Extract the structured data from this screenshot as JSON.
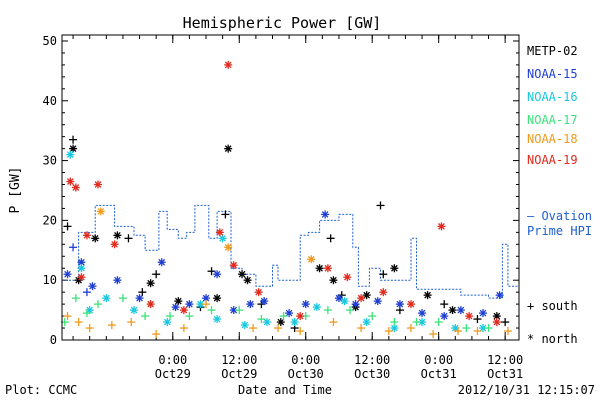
{
  "chart_data": {
    "type": "scatter",
    "title": "Hemispheric Power [GW]",
    "ylabel": "P [GW]",
    "xlabel": "Date and Time",
    "footer_left": "Plot: CCMC",
    "footer_right": "2012/10/31 12:15:07",
    "ylim": [
      0,
      51
    ],
    "yticks": [
      0,
      10,
      20,
      30,
      40,
      50
    ],
    "xlim": [
      "2012-10-28 04:00",
      "2012-10-31 14:30"
    ],
    "x_ticks": [
      {
        "x": "2012-10-29 00:00",
        "time": "0:00",
        "date": "Oct29"
      },
      {
        "x": "2012-10-29 12:00",
        "time": "12:00",
        "date": "Oct29"
      },
      {
        "x": "2012-10-30 00:00",
        "time": "0:00",
        "date": "Oct30"
      },
      {
        "x": "2012-10-30 12:00",
        "time": "12:00",
        "date": "Oct30"
      },
      {
        "x": "2012-10-31 00:00",
        "time": "0:00",
        "date": "Oct31"
      },
      {
        "x": "2012-10-31 12:00",
        "time": "12:00",
        "date": "Oct31"
      }
    ],
    "legend": {
      "placement": "right",
      "entries": [
        {
          "name": "METP-02",
          "color": "#000000"
        },
        {
          "name": "NOAA-15",
          "color": "#1f3fd0"
        },
        {
          "name": "NOAA-16",
          "color": "#19c8e0"
        },
        {
          "name": "NOAA-17",
          "color": "#3ce27a"
        },
        {
          "name": "NOAA-18",
          "color": "#ef9a1e"
        },
        {
          "name": "NOAA-19",
          "color": "#e02a1e"
        }
      ],
      "ovation_label_1": "— Ovation",
      "ovation_label_2": "Prime HPI",
      "ovation_color": "#1f5fd0",
      "symbol_south": "+ south",
      "symbol_north": "* north"
    },
    "ovation": [
      [
        "2012-10-28 04:00",
        10
      ],
      [
        "2012-10-28 07:00",
        10
      ],
      [
        "2012-10-28 07:00",
        18
      ],
      [
        "2012-10-28 10:00",
        18
      ],
      [
        "2012-10-28 10:00",
        22.5
      ],
      [
        "2012-10-28 13:30",
        22.5
      ],
      [
        "2012-10-28 13:30",
        19
      ],
      [
        "2012-10-28 17:00",
        19
      ],
      [
        "2012-10-28 17:00",
        17.5
      ],
      [
        "2012-10-28 19:00",
        17.5
      ],
      [
        "2012-10-28 19:00",
        15
      ],
      [
        "2012-10-28 21:30",
        15
      ],
      [
        "2012-10-28 21:30",
        21.5
      ],
      [
        "2012-10-28 23:00",
        21.5
      ],
      [
        "2012-10-28 23:00",
        18.5
      ],
      [
        "2012-10-29 01:00",
        18.5
      ],
      [
        "2012-10-29 01:00",
        17
      ],
      [
        "2012-10-29 02:30",
        17
      ],
      [
        "2012-10-29 02:30",
        18
      ],
      [
        "2012-10-29 04:00",
        18
      ],
      [
        "2012-10-29 04:00",
        22.5
      ],
      [
        "2012-10-29 06:30",
        22.5
      ],
      [
        "2012-10-29 06:30",
        17
      ],
      [
        "2012-10-29 08:00",
        17
      ],
      [
        "2012-10-29 08:00",
        21.5
      ],
      [
        "2012-10-29 10:30",
        21.5
      ],
      [
        "2012-10-29 10:30",
        12
      ],
      [
        "2012-10-29 12:30",
        12
      ],
      [
        "2012-10-29 12:30",
        11
      ],
      [
        "2012-10-29 15:00",
        11
      ],
      [
        "2012-10-29 15:00",
        9
      ],
      [
        "2012-10-29 18:00",
        9
      ],
      [
        "2012-10-29 18:00",
        12.5
      ],
      [
        "2012-10-29 19:00",
        12.5
      ],
      [
        "2012-10-29 19:00",
        10
      ],
      [
        "2012-10-29 23:00",
        10
      ],
      [
        "2012-10-29 23:00",
        17.5
      ],
      [
        "2012-10-30 00:30",
        17.5
      ],
      [
        "2012-10-30 00:30",
        18
      ],
      [
        "2012-10-30 02:30",
        18
      ],
      [
        "2012-10-30 02:30",
        20
      ],
      [
        "2012-10-30 06:00",
        20
      ],
      [
        "2012-10-30 06:00",
        21
      ],
      [
        "2012-10-30 08:30",
        21
      ],
      [
        "2012-10-30 08:30",
        15.5
      ],
      [
        "2012-10-30 09:30",
        15.5
      ],
      [
        "2012-10-30 09:30",
        9
      ],
      [
        "2012-10-30 11:30",
        9
      ],
      [
        "2012-10-30 11:30",
        12
      ],
      [
        "2012-10-30 13:30",
        12
      ],
      [
        "2012-10-30 13:30",
        10
      ],
      [
        "2012-10-30 19:00",
        10
      ],
      [
        "2012-10-30 19:00",
        17
      ],
      [
        "2012-10-30 20:00",
        17
      ],
      [
        "2012-10-30 20:00",
        8.5
      ],
      [
        "2012-10-31 04:00",
        8.5
      ],
      [
        "2012-10-31 04:00",
        7.5
      ],
      [
        "2012-10-31 09:00",
        7.5
      ],
      [
        "2012-10-31 09:00",
        7
      ],
      [
        "2012-10-31 11:30",
        7
      ],
      [
        "2012-10-31 11:30",
        16
      ],
      [
        "2012-10-31 12:30",
        16
      ],
      [
        "2012-10-31 12:30",
        9
      ],
      [
        "2012-10-31 14:30",
        9
      ]
    ],
    "series": [
      {
        "name": "METP-02",
        "color": "#000000",
        "points": [
          [
            "2012-10-28 05:00",
            19,
            "s"
          ],
          [
            "2012-10-28 06:00",
            33.5,
            "s"
          ],
          [
            "2012-10-28 06:00",
            32,
            "n"
          ],
          [
            "2012-10-28 07:00",
            10,
            "n"
          ],
          [
            "2012-10-28 10:00",
            17,
            "n"
          ],
          [
            "2012-10-28 14:00",
            17.5,
            "n"
          ],
          [
            "2012-10-28 16:00",
            17,
            "s"
          ],
          [
            "2012-10-28 18:30",
            8,
            "s"
          ],
          [
            "2012-10-28 20:00",
            9.5,
            "n"
          ],
          [
            "2012-10-28 21:00",
            11,
            "s"
          ],
          [
            "2012-10-29 01:00",
            6.5,
            "n"
          ],
          [
            "2012-10-29 05:00",
            5.5,
            "s"
          ],
          [
            "2012-10-29 07:00",
            11.5,
            "s"
          ],
          [
            "2012-10-29 08:00",
            7,
            "n"
          ],
          [
            "2012-10-29 09:30",
            21,
            "s"
          ],
          [
            "2012-10-29 10:00",
            32,
            "n"
          ],
          [
            "2012-10-29 12:30",
            11,
            "n"
          ],
          [
            "2012-10-29 13:30",
            10,
            "n"
          ],
          [
            "2012-10-29 16:00",
            6,
            "s"
          ],
          [
            "2012-10-29 19:30",
            3,
            "n"
          ],
          [
            "2012-10-29 22:00",
            2,
            "s"
          ],
          [
            "2012-10-30 02:30",
            12,
            "n"
          ],
          [
            "2012-10-30 04:30",
            17,
            "s"
          ],
          [
            "2012-10-30 05:00",
            10,
            "n"
          ],
          [
            "2012-10-30 06:30",
            7.5,
            "s"
          ],
          [
            "2012-10-30 09:00",
            5.5,
            "n"
          ],
          [
            "2012-10-30 11:00",
            7.5,
            "n"
          ],
          [
            "2012-10-30 13:30",
            22.5,
            "s"
          ],
          [
            "2012-10-30 14:00",
            11,
            "s"
          ],
          [
            "2012-10-30 16:00",
            12,
            "n"
          ],
          [
            "2012-10-30 17:00",
            5,
            "s"
          ],
          [
            "2012-10-30 22:00",
            7.5,
            "n"
          ],
          [
            "2012-10-31 01:00",
            6,
            "s"
          ],
          [
            "2012-10-31 02:30",
            5,
            "n"
          ],
          [
            "2012-10-31 07:00",
            3.5,
            "s"
          ],
          [
            "2012-10-31 10:30",
            4,
            "n"
          ],
          [
            "2012-10-31 12:00",
            3,
            "s"
          ]
        ]
      },
      {
        "name": "NOAA-15",
        "color": "#1f3fd0",
        "points": [
          [
            "2012-10-28 05:00",
            11,
            "n"
          ],
          [
            "2012-10-28 06:00",
            15.5,
            "s"
          ],
          [
            "2012-10-28 07:30",
            13,
            "n"
          ],
          [
            "2012-10-28 08:30",
            8,
            "s"
          ],
          [
            "2012-10-28 09:30",
            9,
            "n"
          ],
          [
            "2012-10-28 14:00",
            10,
            "n"
          ],
          [
            "2012-10-28 18:00",
            7,
            "n"
          ],
          [
            "2012-10-28 22:00",
            13,
            "n"
          ],
          [
            "2012-10-29 00:30",
            5.5,
            "n"
          ],
          [
            "2012-10-29 03:00",
            6,
            "n"
          ],
          [
            "2012-10-29 06:00",
            7,
            "n"
          ],
          [
            "2012-10-29 08:00",
            11,
            "n"
          ],
          [
            "2012-10-29 11:00",
            5,
            "n"
          ],
          [
            "2012-10-29 14:00",
            6,
            "n"
          ],
          [
            "2012-10-29 16:30",
            6.5,
            "n"
          ],
          [
            "2012-10-29 21:00",
            4.5,
            "n"
          ],
          [
            "2012-10-30 00:00",
            6,
            "n"
          ],
          [
            "2012-10-30 03:30",
            21,
            "n"
          ],
          [
            "2012-10-30 06:00",
            7,
            "n"
          ],
          [
            "2012-10-30 09:00",
            6,
            "n"
          ],
          [
            "2012-10-30 13:00",
            6.5,
            "n"
          ],
          [
            "2012-10-30 17:00",
            6,
            "n"
          ],
          [
            "2012-10-30 21:00",
            4.5,
            "n"
          ],
          [
            "2012-10-31 01:00",
            4,
            "n"
          ],
          [
            "2012-10-31 04:00",
            5,
            "n"
          ],
          [
            "2012-10-31 08:00",
            4.5,
            "n"
          ],
          [
            "2012-10-31 11:00",
            7.5,
            "n"
          ]
        ]
      },
      {
        "name": "NOAA-16",
        "color": "#19c8e0",
        "points": [
          [
            "2012-10-28 05:30",
            31,
            "n"
          ],
          [
            "2012-10-28 07:30",
            12,
            "n"
          ],
          [
            "2012-10-28 09:00",
            5,
            "n"
          ],
          [
            "2012-10-28 12:00",
            7,
            "n"
          ],
          [
            "2012-10-28 17:00",
            5,
            "n"
          ],
          [
            "2012-10-28 23:00",
            3,
            "n"
          ],
          [
            "2012-10-29 05:00",
            6,
            "n"
          ],
          [
            "2012-10-29 08:00",
            3.5,
            "n"
          ],
          [
            "2012-10-29 09:00",
            17,
            "n"
          ],
          [
            "2012-10-29 13:00",
            2.5,
            "n"
          ],
          [
            "2012-10-29 17:00",
            3,
            "n"
          ],
          [
            "2012-10-29 22:00",
            3,
            "n"
          ],
          [
            "2012-10-30 02:00",
            5.5,
            "n"
          ],
          [
            "2012-10-30 07:00",
            6.5,
            "n"
          ],
          [
            "2012-10-30 11:00",
            3,
            "n"
          ],
          [
            "2012-10-30 16:00",
            2,
            "n"
          ],
          [
            "2012-10-30 21:00",
            3,
            "n"
          ],
          [
            "2012-10-31 03:00",
            2,
            "n"
          ],
          [
            "2012-10-31 08:00",
            2,
            "n"
          ]
        ]
      },
      {
        "name": "NOAA-17",
        "color": "#3ce27a",
        "points": [
          [
            "2012-10-28 04:30",
            3,
            "s"
          ],
          [
            "2012-10-28 06:30",
            7,
            "s"
          ],
          [
            "2012-10-28 08:30",
            4.5,
            "s"
          ],
          [
            "2012-10-28 10:30",
            6,
            "s"
          ],
          [
            "2012-10-28 15:00",
            7,
            "s"
          ],
          [
            "2012-10-28 19:00",
            4,
            "s"
          ],
          [
            "2012-10-28 23:30",
            4,
            "s"
          ],
          [
            "2012-10-29 03:00",
            4,
            "s"
          ],
          [
            "2012-10-29 07:00",
            5,
            "s"
          ],
          [
            "2012-10-29 12:00",
            5,
            "s"
          ],
          [
            "2012-10-29 16:00",
            3.5,
            "s"
          ],
          [
            "2012-10-29 20:00",
            4,
            "s"
          ],
          [
            "2012-10-30 00:00",
            4,
            "s"
          ],
          [
            "2012-10-30 04:00",
            5,
            "s"
          ],
          [
            "2012-10-30 08:00",
            5,
            "s"
          ],
          [
            "2012-10-30 12:00",
            4,
            "s"
          ],
          [
            "2012-10-30 16:00",
            3,
            "s"
          ],
          [
            "2012-10-30 20:00",
            3,
            "s"
          ],
          [
            "2012-10-31 00:00",
            3,
            "s"
          ],
          [
            "2012-10-31 05:00",
            2,
            "s"
          ],
          [
            "2012-10-31 09:00",
            2,
            "s"
          ]
        ]
      },
      {
        "name": "NOAA-18",
        "color": "#ef9a1e",
        "points": [
          [
            "2012-10-28 05:00",
            4,
            "s"
          ],
          [
            "2012-10-28 07:00",
            3,
            "s"
          ],
          [
            "2012-10-28 09:00",
            2,
            "s"
          ],
          [
            "2012-10-28 11:00",
            21.5,
            "n"
          ],
          [
            "2012-10-28 13:00",
            2.5,
            "s"
          ],
          [
            "2012-10-28 16:30",
            3,
            "s"
          ],
          [
            "2012-10-28 21:00",
            1,
            "s"
          ],
          [
            "2012-10-29 02:00",
            2,
            "s"
          ],
          [
            "2012-10-29 06:00",
            6,
            "s"
          ],
          [
            "2012-10-29 10:00",
            15.5,
            "n"
          ],
          [
            "2012-10-29 14:30",
            2,
            "s"
          ],
          [
            "2012-10-29 19:00",
            2,
            "s"
          ],
          [
            "2012-10-29 23:00",
            1.5,
            "s"
          ],
          [
            "2012-10-30 01:00",
            13.5,
            "n"
          ],
          [
            "2012-10-30 05:00",
            3,
            "s"
          ],
          [
            "2012-10-30 10:00",
            2,
            "s"
          ],
          [
            "2012-10-30 15:00",
            1.5,
            "s"
          ],
          [
            "2012-10-30 19:00",
            2,
            "s"
          ],
          [
            "2012-10-30 23:00",
            1,
            "s"
          ],
          [
            "2012-10-31 03:30",
            1.5,
            "s"
          ],
          [
            "2012-10-31 07:00",
            1.5,
            "s"
          ],
          [
            "2012-10-31 12:30",
            1.5,
            "s"
          ]
        ]
      },
      {
        "name": "NOAA-19",
        "color": "#e02a1e",
        "points": [
          [
            "2012-10-28 05:30",
            26.5,
            "n"
          ],
          [
            "2012-10-28 06:30",
            25.5,
            "n"
          ],
          [
            "2012-10-28 07:30",
            10.5,
            "n"
          ],
          [
            "2012-10-28 08:30",
            17.5,
            "n"
          ],
          [
            "2012-10-28 10:30",
            26,
            "n"
          ],
          [
            "2012-10-28 13:30",
            16,
            "n"
          ],
          [
            "2012-10-28 20:00",
            6,
            "n"
          ],
          [
            "2012-10-29 02:00",
            5,
            "n"
          ],
          [
            "2012-10-29 08:30",
            18,
            "n"
          ],
          [
            "2012-10-29 10:00",
            46,
            "n"
          ],
          [
            "2012-10-29 11:00",
            12.5,
            "n"
          ],
          [
            "2012-10-29 15:30",
            8,
            "n"
          ],
          [
            "2012-10-29 23:00",
            4,
            "n"
          ],
          [
            "2012-10-30 04:00",
            12,
            "n"
          ],
          [
            "2012-10-30 07:30",
            10.5,
            "n"
          ],
          [
            "2012-10-30 10:00",
            7,
            "n"
          ],
          [
            "2012-10-30 14:00",
            8,
            "n"
          ],
          [
            "2012-10-30 19:00",
            6,
            "n"
          ],
          [
            "2012-10-31 00:30",
            19,
            "n"
          ],
          [
            "2012-10-31 05:30",
            4,
            "n"
          ],
          [
            "2012-10-31 10:30",
            3,
            "n"
          ]
        ]
      }
    ]
  }
}
